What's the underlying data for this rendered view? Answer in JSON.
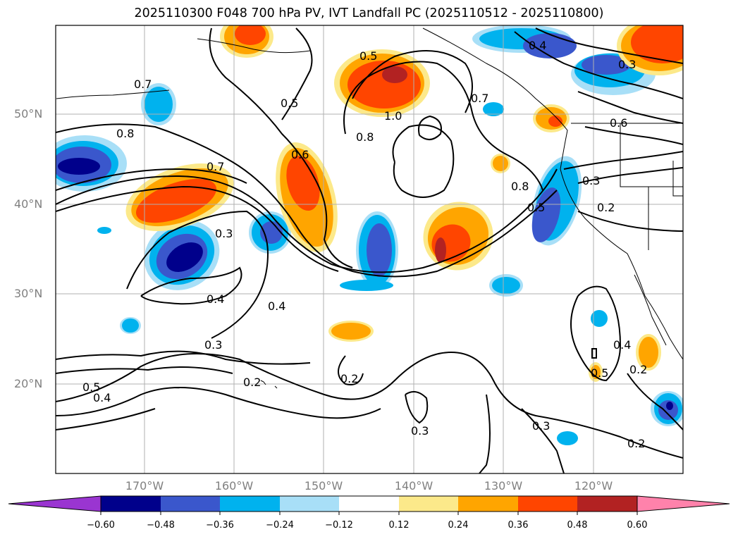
{
  "title": "2025110300 F048 700 hPa PV, IVT Landfall PC (2025110512 - 2025110800)",
  "lat_labels": [
    "50°N",
    "40°N",
    "30°N",
    "20°N"
  ],
  "lon_labels": [
    "170°W",
    "160°W",
    "150°W",
    "140°W",
    "130°W",
    "120°W"
  ],
  "colorbar": {
    "tick_labels": [
      "−0.60",
      "−0.48",
      "−0.36",
      "−0.24",
      "−0.12",
      "0.12",
      "0.24",
      "0.36",
      "0.48",
      "0.60"
    ],
    "colors": [
      "#9a35d1",
      "#00008b",
      "#3a57cc",
      "#00b2ee",
      "#a8dff7",
      "#ffffff",
      "#fce98a",
      "#ffa500",
      "#ff4500",
      "#b22222",
      "#ff82ab"
    ]
  },
  "contour_labels": [
    "0.7",
    "0.8",
    "0.7",
    "0.3",
    "0.4",
    "0.3",
    "0.2",
    "0.5",
    "0.4",
    "0.5",
    "0.6",
    "0.5",
    "0.8",
    "1.0",
    "0.7",
    "0.2",
    "0.3",
    "0.4",
    "0.6",
    "0.4",
    "0.3",
    "0.8",
    "0.5",
    "0.3",
    "0.2",
    "0.4",
    "0.5",
    "0.2",
    "0.3",
    "0.2"
  ]
}
